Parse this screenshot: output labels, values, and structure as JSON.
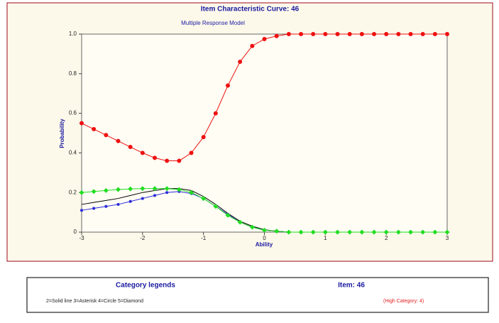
{
  "chart_data": {
    "type": "line",
    "title": "Item Characteristic Curve: 46",
    "subtitle": "Multiple Response Model",
    "xlabel": "Ability",
    "ylabel": "Probability",
    "x": [
      -3,
      -2.8,
      -2.6,
      -2.4,
      -2.2,
      -2,
      -1.8,
      -1.6,
      -1.4,
      -1.2,
      -1,
      -0.8,
      -0.6,
      -0.4,
      -0.2,
      0,
      0.2,
      0.4,
      0.6,
      0.8,
      1,
      1.2,
      1.4,
      1.6,
      1.8,
      2,
      2.2,
      2.4,
      2.6,
      2.8,
      3
    ],
    "series": [
      {
        "color": "#000000",
        "marker": "none",
        "values": [
          0.14,
          0.15,
          0.16,
          0.17,
          0.185,
          0.2,
          0.21,
          0.22,
          0.22,
          0.21,
          0.18,
          0.14,
          0.095,
          0.055,
          0.03,
          0.012,
          0.005,
          0,
          0,
          0,
          0,
          0,
          0,
          0,
          0,
          0,
          0,
          0,
          0,
          0,
          0
        ]
      },
      {
        "color": "#2b2bd9",
        "marker": "asterisk",
        "values": [
          0.11,
          0.12,
          0.13,
          0.14,
          0.155,
          0.17,
          0.185,
          0.2,
          0.205,
          0.195,
          0.17,
          0.13,
          0.09,
          0.05,
          0.025,
          0.01,
          0.005,
          0,
          0,
          0,
          0,
          0,
          0,
          0,
          0,
          0,
          0,
          0,
          0,
          0,
          0
        ]
      },
      {
        "color": "#22dd22",
        "marker": "diamond",
        "values": [
          0.2,
          0.205,
          0.21,
          0.215,
          0.218,
          0.22,
          0.22,
          0.22,
          0.215,
          0.2,
          0.17,
          0.13,
          0.085,
          0.05,
          0.025,
          0.01,
          0.005,
          0,
          0,
          0,
          0,
          0,
          0,
          0,
          0,
          0,
          0,
          0,
          0,
          0,
          0
        ]
      },
      {
        "color": "#ee1111",
        "marker": "circle",
        "values": [
          0.55,
          0.52,
          0.49,
          0.46,
          0.43,
          0.4,
          0.375,
          0.36,
          0.36,
          0.4,
          0.48,
          0.6,
          0.74,
          0.86,
          0.94,
          0.975,
          0.99,
          1,
          1,
          1,
          1,
          1,
          1,
          1,
          1,
          1,
          1,
          1,
          1,
          1,
          1
        ]
      }
    ],
    "xlim": [
      -3,
      3
    ],
    "ylim": [
      0,
      1
    ],
    "xticks": [
      -3,
      -2,
      -1,
      0,
      1,
      2,
      3
    ],
    "yticks": [
      0,
      0.2,
      0.4,
      0.6,
      0.8,
      {
        "value": 1,
        "label": "1.0"
      }
    ],
    "grid": false
  },
  "legend_box": {
    "title": "Category legends",
    "item": "Item: 46",
    "description": "2=Solid line 3=Asterisk 4=Circle 5=Diamond",
    "high_category": "(High Category: 4)"
  }
}
